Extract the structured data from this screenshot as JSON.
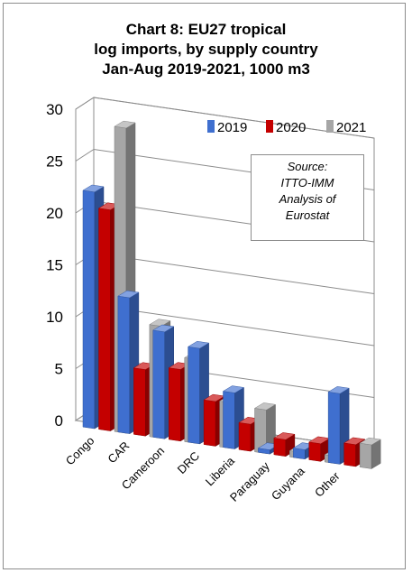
{
  "title_lines": [
    "Chart 8: EU27 tropical",
    "log imports, by supply country",
    "Jan-Aug 2019-2021, 1000 m3"
  ],
  "source_lines": [
    "Source:",
    "ITTO-IMM",
    "Analysis of",
    "Eurostat"
  ],
  "chart_data": {
    "type": "bar",
    "title": "Chart 8: EU27 tropical log imports, by supply country Jan-Aug 2019-2021, 1000 m3",
    "categories": [
      "Congo",
      "CAR",
      "Cameroon",
      "DRC",
      "Liberia",
      "Paraguay",
      "Guyana",
      "Other"
    ],
    "series": [
      {
        "name": "2019",
        "values": [
          22.8,
          13.1,
          10.3,
          9.2,
          5.4,
          0.4,
          0.9,
          6.8
        ]
      },
      {
        "name": "2020",
        "values": [
          21.3,
          6.4,
          6.9,
          4.3,
          2.6,
          1.6,
          1.7,
          2.1
        ]
      },
      {
        "name": "2021",
        "values": [
          29.4,
          10.8,
          8.1,
          4.4,
          4.2,
          0.6,
          0.7,
          2.3
        ]
      }
    ],
    "yticks": [
      "0",
      "5",
      "10",
      "15",
      "20",
      "25",
      "30"
    ],
    "ylim": [
      0,
      30
    ],
    "grid": true,
    "legend": "top-right",
    "colors": {
      "2019": "#3f6fcf",
      "2020": "#c40000",
      "2021": "#a6a6a6"
    }
  }
}
